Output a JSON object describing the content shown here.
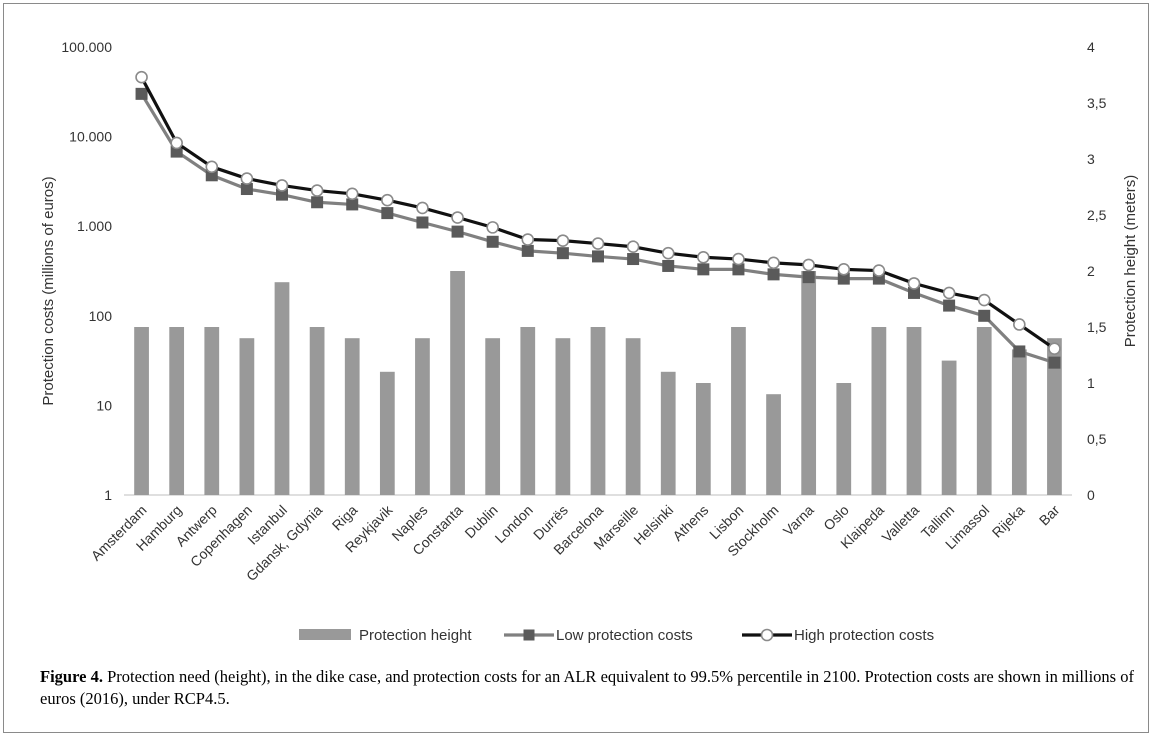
{
  "chart_data": {
    "type": "bar+line",
    "categories": [
      "Amsterdam",
      "Hamburg",
      "Antwerp",
      "Copenhagen",
      "Istanbul",
      "Gdansk, Gdynia",
      "Riga",
      "Reykjavik",
      "Naples",
      "Constanta",
      "Dublin",
      "London",
      "Durrës",
      "Barcelona",
      "Marseille",
      "Helsinki",
      "Athens",
      "Lisbon",
      "Stockholm",
      "Varna",
      "Oslo",
      "Klaipeda",
      "Valletta",
      "Tallinn",
      "Limassol",
      "Rijeka",
      "Bar"
    ],
    "series": [
      {
        "name": "Protection height",
        "kind": "bar",
        "axis": "right",
        "color": "#999999",
        "values": [
          1.5,
          1.5,
          1.5,
          1.4,
          1.9,
          1.5,
          1.4,
          1.1,
          1.4,
          2.0,
          1.4,
          1.5,
          1.4,
          1.5,
          1.4,
          1.1,
          1.0,
          1.5,
          0.9,
          2.0,
          1.0,
          1.5,
          1.5,
          1.2,
          1.5,
          1.3,
          1.4
        ]
      },
      {
        "name": "Low protection costs",
        "kind": "line",
        "axis": "left",
        "color": "#808080",
        "marker": "square",
        "values": [
          30000,
          6800,
          3700,
          2600,
          2250,
          1850,
          1750,
          1400,
          1100,
          870,
          670,
          530,
          500,
          460,
          430,
          360,
          330,
          330,
          290,
          270,
          260,
          260,
          180,
          130,
          100,
          40,
          30
        ]
      },
      {
        "name": "High protection costs",
        "kind": "line",
        "axis": "left",
        "color": "#111111",
        "marker": "circle",
        "values": [
          46000,
          8500,
          4600,
          3400,
          2850,
          2500,
          2300,
          1950,
          1600,
          1250,
          970,
          710,
          690,
          640,
          590,
          500,
          450,
          430,
          390,
          370,
          330,
          320,
          230,
          180,
          150,
          80,
          43
        ]
      }
    ],
    "y_left": {
      "label": "Protection costs (millions of euros)",
      "scale": "log",
      "ylim": [
        1,
        100000
      ],
      "ticks": [
        1,
        10,
        100,
        1000,
        10000,
        100000
      ],
      "tick_labels": [
        "1",
        "10",
        "100",
        "1.000",
        "10.000",
        "100.000"
      ]
    },
    "y_right": {
      "label": "Protection height (meters)",
      "scale": "linear",
      "ylim": [
        0,
        4
      ],
      "ticks": [
        0,
        0.5,
        1,
        1.5,
        2,
        2.5,
        3,
        3.5,
        4
      ],
      "tick_labels": [
        "0",
        "0,5",
        "1",
        "1,5",
        "2",
        "2,5",
        "3",
        "3,5",
        "4"
      ]
    },
    "legend": {
      "placement": "bottom"
    },
    "grid": false
  },
  "caption": {
    "label": "Figure 4.",
    "text": " Protection need (height), in the dike case, and protection costs for an ALR equivalent to 99.5% percentile in 2100. Protection costs are shown in millions of euros (2016), under RCP4.5."
  }
}
